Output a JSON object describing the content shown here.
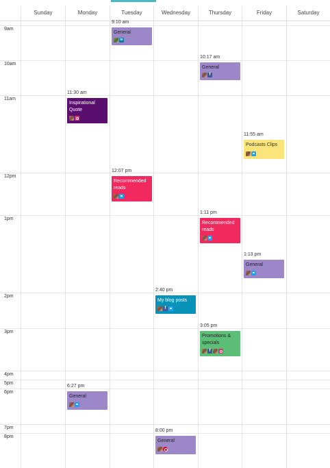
{
  "days": [
    "Sunday",
    "Monday",
    "Tuesday",
    "Wednesday",
    "Thursday",
    "Friday",
    "Saturday"
  ],
  "times": [
    "9am",
    "10am",
    "11am",
    "12pm",
    "1pm",
    "2pm",
    "3pm",
    "4pm",
    "5pm",
    "6pm",
    "7pm",
    "8pm"
  ],
  "colors": {
    "purple": "#9c88c9",
    "darkpurple": "#5a0f6e",
    "pink": "#f0295e",
    "yellow": "#fbe57a",
    "teal": "#0a93b8",
    "green": "#5dbe77"
  },
  "events": [
    {
      "day": "Tuesday",
      "time": "9:10 am",
      "title": "General",
      "color": "purple",
      "icons": [
        "avatar2",
        "linkedin"
      ]
    },
    {
      "day": "Thursday",
      "time": "10:17 am",
      "title": "General",
      "color": "purple",
      "icons": [
        "avatar",
        "facebook"
      ]
    },
    {
      "day": "Monday",
      "time": "11:30 am",
      "title": "Inspirational Quote",
      "color": "darkpurple",
      "icons": [
        "avatar",
        "instagram"
      ]
    },
    {
      "day": "Friday",
      "time": "11:55 am",
      "title": "Podcasts Clips",
      "color": "yellow",
      "icons": [
        "avatar",
        "twitter"
      ]
    },
    {
      "day": "Tuesday",
      "time": "12:07 pm",
      "title": "Recommended reads",
      "color": "pink",
      "icons": [
        "avatar",
        "twitter"
      ]
    },
    {
      "day": "Thursday",
      "time": "1:11 pm",
      "title": "Recommended reads",
      "color": "pink",
      "icons": [
        "avatar",
        "twitter"
      ]
    },
    {
      "day": "Friday",
      "time": "1:13 pm",
      "title": "General",
      "color": "purple",
      "icons": [
        "avatar",
        "twitter"
      ]
    },
    {
      "day": "Wednesday",
      "time": "2:40 pm",
      "title": "My blog posts",
      "color": "teal",
      "icons": [
        "avatar",
        "facebook",
        "twitter"
      ]
    },
    {
      "day": "Thursday",
      "time": "3:05 pm",
      "title": "Promotions & specials",
      "color": "green",
      "icons": [
        "avatar",
        "facebook",
        "avatar",
        "instagram"
      ]
    },
    {
      "day": "Monday",
      "time": "6:27 pm",
      "title": "General",
      "color": "purple",
      "icons": [
        "avatar",
        "twitter"
      ]
    },
    {
      "day": "Wednesday",
      "time": "8:00 pm",
      "title": "General",
      "color": "purple",
      "icons": [
        "avatar",
        "pinterest"
      ]
    }
  ]
}
